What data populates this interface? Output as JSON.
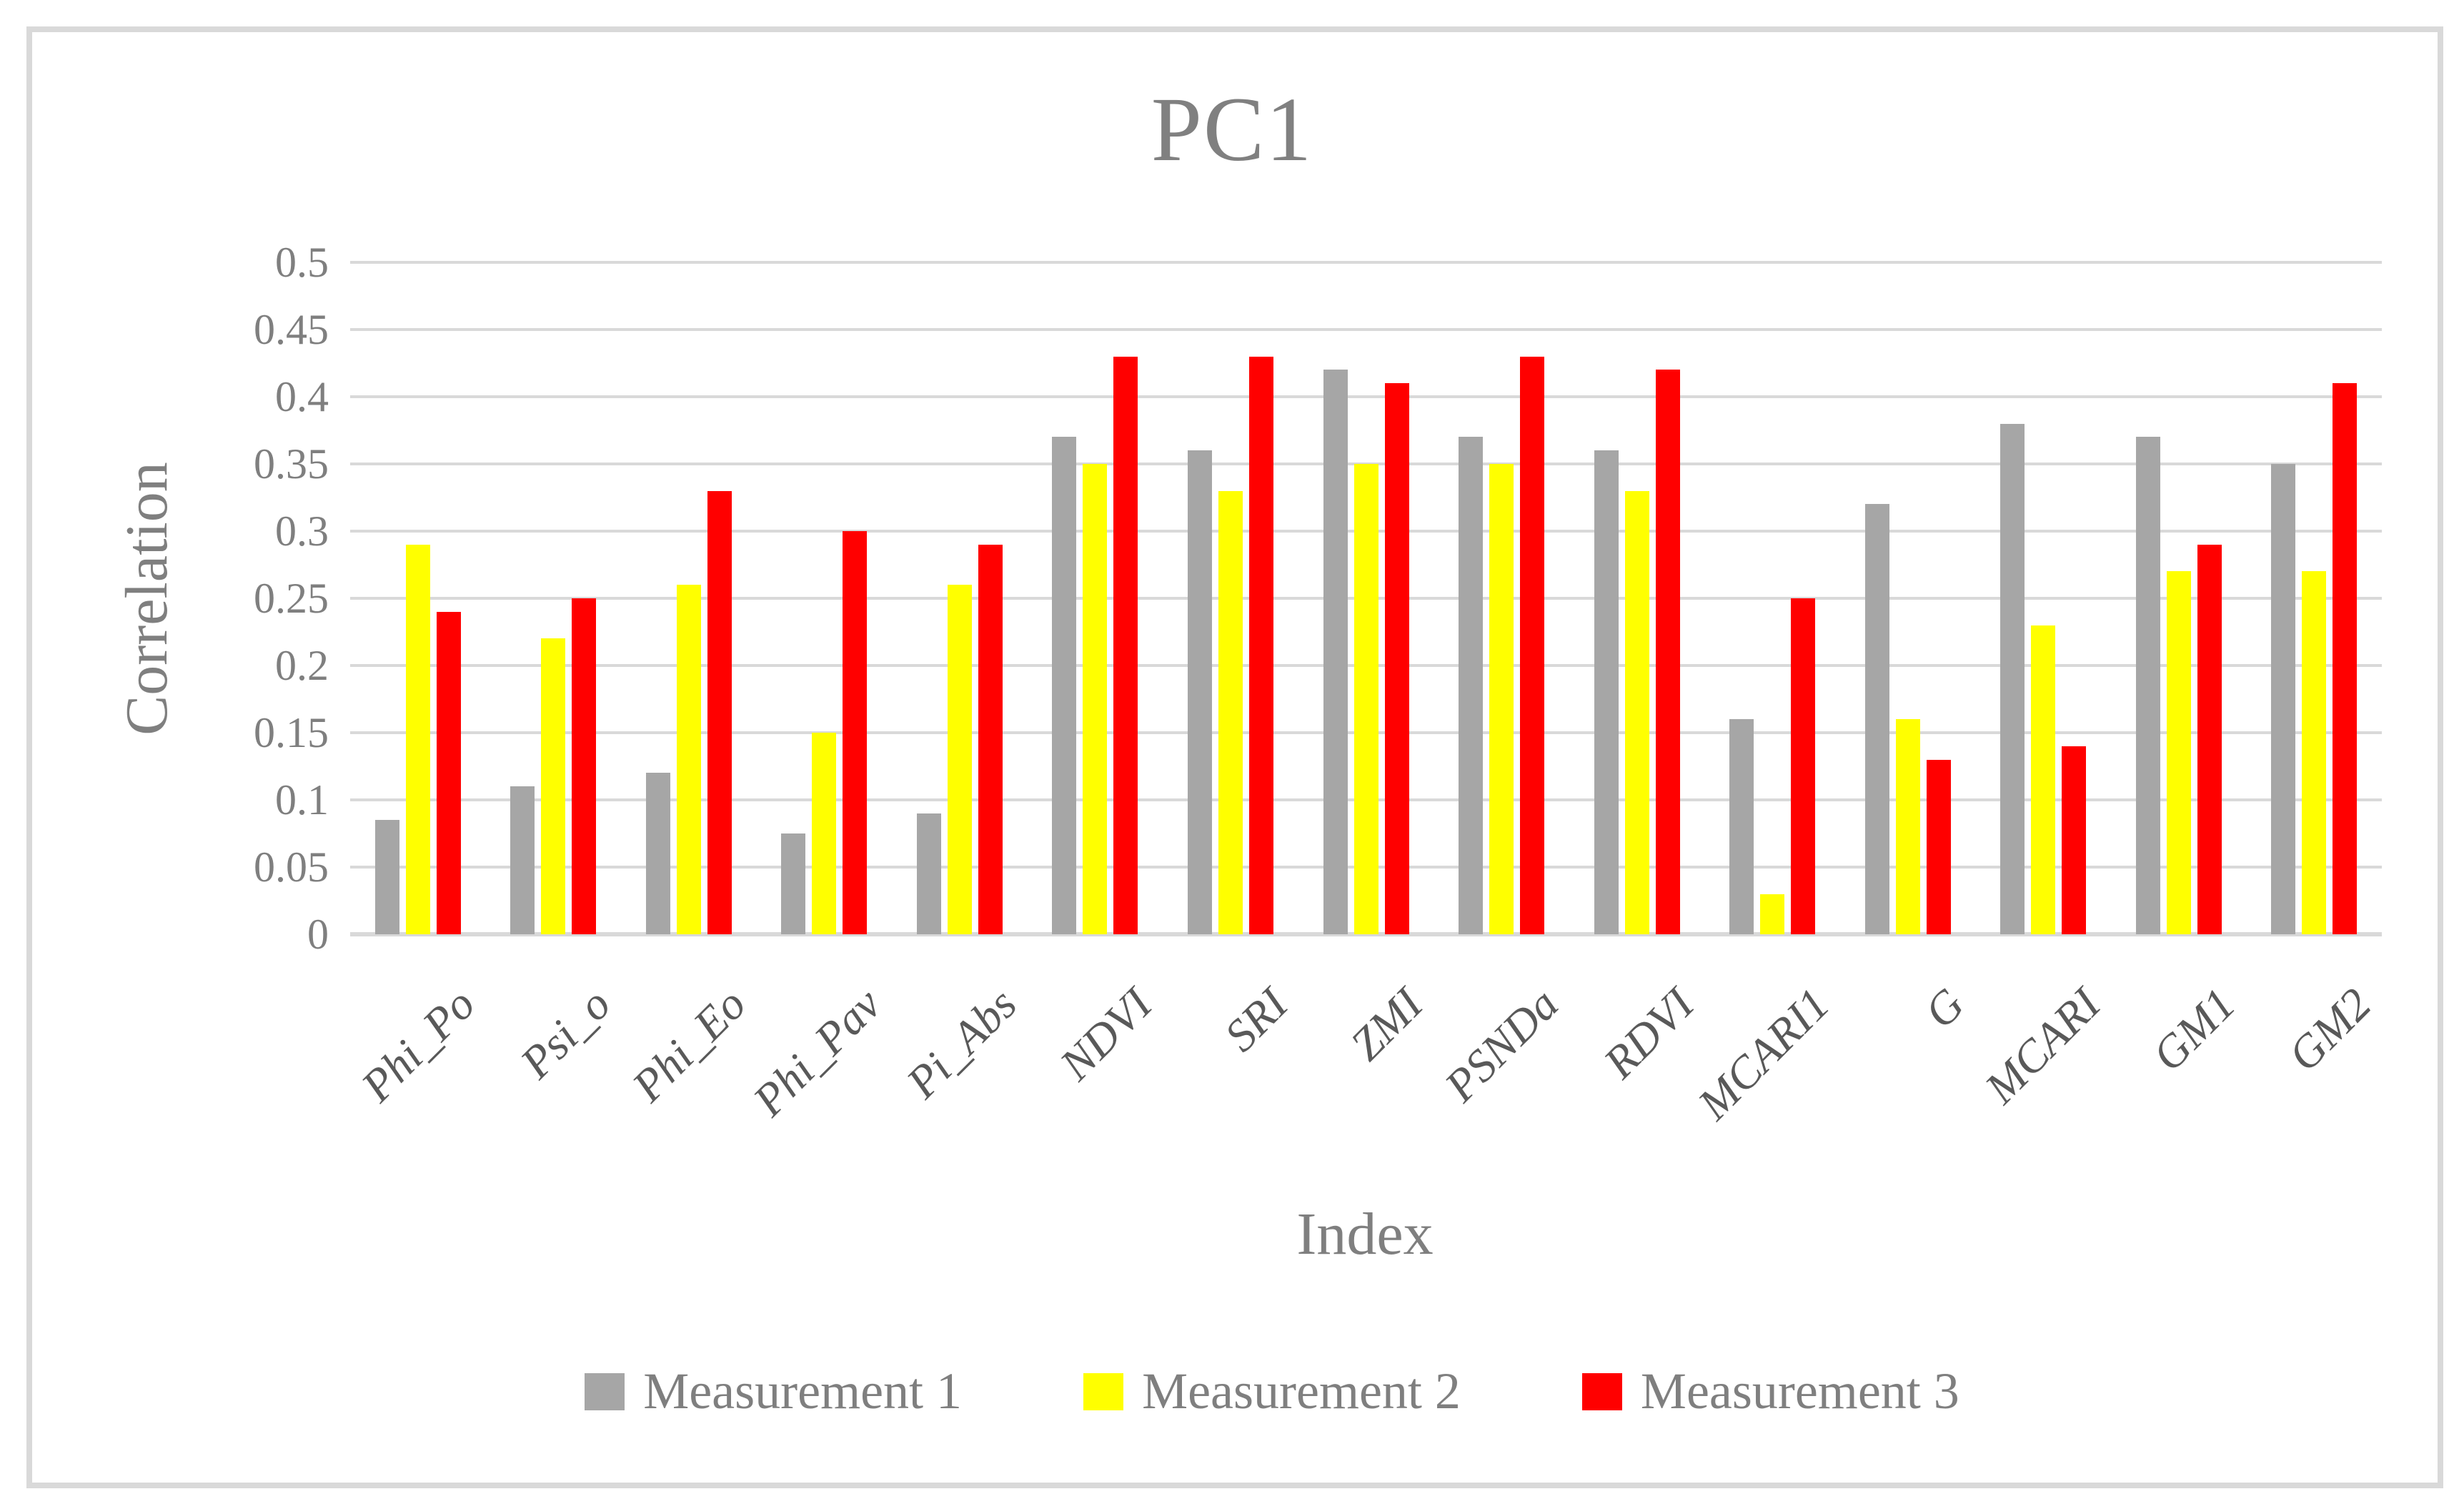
{
  "title": "PC1",
  "y_axis": {
    "label": "Correlation",
    "ticks": [
      "0",
      "0.05",
      "0.1",
      "0.15",
      "0.2",
      "0.25",
      "0.3",
      "0.35",
      "0.4",
      "0.45",
      "0.5"
    ]
  },
  "x_axis": {
    "label": "Index"
  },
  "legend": [
    {
      "label": "Measurement 1",
      "color": "#a6a6a6"
    },
    {
      "label": "Measurement 2",
      "color": "#ffff00"
    },
    {
      "label": "Measurement 3",
      "color": "#ff0000"
    }
  ],
  "colors": {
    "gridline": "#d9d9d9",
    "frame_border": "#d9d9d9",
    "text_gray": "#7f7f7f",
    "series1": "#a6a6a6",
    "series2": "#ffff00",
    "series3": "#ff0000"
  },
  "chart_data": {
    "type": "bar",
    "title": "PC1",
    "xlabel": "Index",
    "ylabel": "Correlation",
    "ylim": [
      0,
      0.5
    ],
    "ytick_step": 0.05,
    "grid": true,
    "legend_position": "bottom",
    "categories": [
      "Phi_Po",
      "Psi_o",
      "Phi_Eo",
      "Phi_Pav",
      "Pi_Abs",
      "NDVI",
      "SRI",
      "ZMI",
      "PSNDa",
      "RDVI",
      "MCARI1",
      "G",
      "MCARI",
      "GM1",
      "GM2"
    ],
    "series": [
      {
        "name": "Measurement 1",
        "color": "#a6a6a6",
        "values": [
          0.085,
          0.11,
          0.12,
          0.075,
          0.09,
          0.37,
          0.36,
          0.42,
          0.37,
          0.36,
          0.16,
          0.32,
          0.38,
          0.37,
          0.35
        ]
      },
      {
        "name": "Measurement 2",
        "color": "#ffff00",
        "values": [
          0.29,
          0.22,
          0.26,
          0.15,
          0.26,
          0.35,
          0.33,
          0.35,
          0.35,
          0.33,
          0.03,
          0.16,
          0.23,
          0.27,
          0.27
        ]
      },
      {
        "name": "Measurement 3",
        "color": "#ff0000",
        "values": [
          0.24,
          0.25,
          0.33,
          0.3,
          0.29,
          0.43,
          0.43,
          0.41,
          0.43,
          0.42,
          0.25,
          0.13,
          0.14,
          0.29,
          0.41
        ]
      }
    ]
  }
}
